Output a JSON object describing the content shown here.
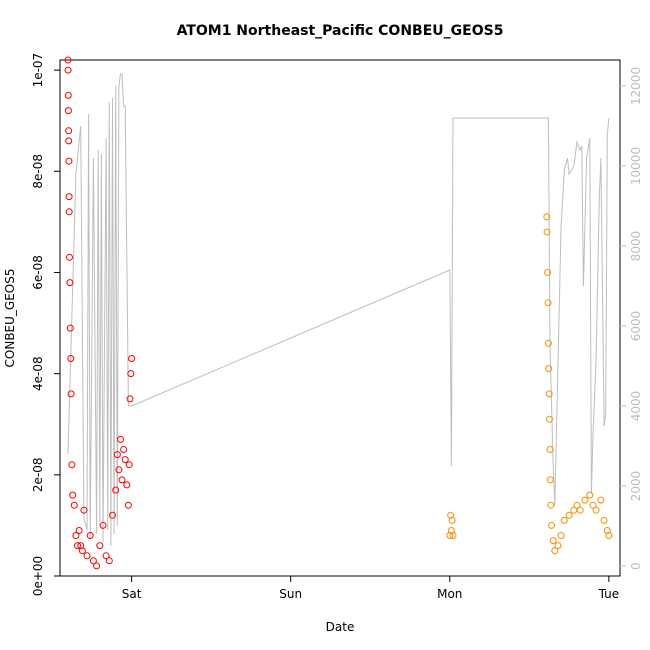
{
  "chart_data": {
    "type": "scatter",
    "title": "ATOM1 Northeast_Pacific CONBEU_GEOS5",
    "xlabel": "Date",
    "ylabel": "CONBEU_GEOS5",
    "x_unit": "days since Fri 00:00",
    "xlim": [
      0.55,
      4.07
    ],
    "x_ticks": [
      {
        "label": "Sat",
        "value": 1
      },
      {
        "label": "Sun",
        "value": 2
      },
      {
        "label": "Mon",
        "value": 3
      },
      {
        "label": "Tue",
        "value": 4
      }
    ],
    "ylim": [
      0,
      1.02e-07
    ],
    "y_ticks": [
      "0e+00",
      "2e-08",
      "4e-08",
      "6e-08",
      "8e-08",
      "1e-07"
    ],
    "y2lim": [
      0,
      12300
    ],
    "y2_ticks": [
      "0",
      "2000",
      "4000",
      "6000",
      "8000",
      "10000",
      "12000"
    ],
    "grid": false,
    "series": [
      {
        "name": "",
        "kind": "points",
        "color": "#ff0000",
        "x": [
          0.6,
          0.601,
          0.602,
          0.603,
          0.604,
          0.605,
          0.606,
          0.607,
          0.608,
          0.61,
          0.612,
          0.615,
          0.618,
          0.62,
          0.625,
          0.63,
          0.64,
          0.65,
          0.66,
          0.67,
          0.68,
          0.69,
          0.7,
          0.72,
          0.74,
          0.76,
          0.78,
          0.8,
          0.82,
          0.84,
          0.86,
          0.88,
          0.9,
          0.91,
          0.92,
          0.93,
          0.94,
          0.95,
          0.96,
          0.97,
          0.98,
          0.985,
          0.99,
          0.995,
          1.0
        ],
        "values": [
          1.02e-07,
          1e-07,
          9.5e-08,
          9.2e-08,
          8.8e-08,
          8.6e-08,
          8.2e-08,
          7.5e-08,
          7.2e-08,
          6.3e-08,
          5.8e-08,
          4.9e-08,
          4.3e-08,
          3.6e-08,
          2.2e-08,
          1.6e-08,
          1.4e-08,
          8e-09,
          6e-09,
          9e-09,
          6e-09,
          5e-09,
          1.3e-08,
          4e-09,
          8e-09,
          3e-09,
          2e-09,
          6e-09,
          1e-08,
          4e-09,
          3e-09,
          1.2e-08,
          1.7e-08,
          2.4e-08,
          2.1e-08,
          2.7e-08,
          1.9e-08,
          2.5e-08,
          2.3e-08,
          1.8e-08,
          1.4e-08,
          2.2e-08,
          3.5e-08,
          4e-08,
          4.3e-08
        ]
      },
      {
        "name": "",
        "kind": "points",
        "color": "#ff8c00",
        "x": [
          3.0,
          3.005,
          3.01,
          3.015,
          3.02,
          3.61,
          3.612,
          3.615,
          3.618,
          3.62,
          3.622,
          3.625,
          3.627,
          3.63,
          3.632,
          3.635,
          3.64,
          3.65,
          3.66,
          3.68,
          3.7,
          3.72,
          3.75,
          3.78,
          3.8,
          3.82,
          3.85,
          3.88,
          3.9,
          3.92,
          3.95,
          3.97,
          3.99,
          4.0
        ],
        "values": [
          8e-09,
          1.2e-08,
          9e-09,
          1.1e-08,
          8e-09,
          7.1e-08,
          6.8e-08,
          6e-08,
          5.4e-08,
          4.6e-08,
          4.1e-08,
          3.6e-08,
          3.1e-08,
          2.5e-08,
          1.9e-08,
          1.4e-08,
          1e-08,
          7e-09,
          5e-09,
          6e-09,
          8e-09,
          1.1e-08,
          1.2e-08,
          1.3e-08,
          1.4e-08,
          1.3e-08,
          1.5e-08,
          1.6e-08,
          1.4e-08,
          1.3e-08,
          1.5e-08,
          1.1e-08,
          9e-09,
          8e-09
        ]
      },
      {
        "name": "",
        "kind": "line",
        "axis": "right",
        "color": "#bebebe",
        "x": [
          0.6,
          0.65,
          0.68,
          0.7,
          0.72,
          0.73,
          0.74,
          0.76,
          0.78,
          0.79,
          0.8,
          0.81,
          0.82,
          0.84,
          0.85,
          0.86,
          0.87,
          0.88,
          0.89,
          0.9,
          0.91,
          0.92,
          0.93,
          0.94,
          0.95,
          0.96,
          0.98,
          1.0,
          3.0,
          3.01,
          3.02,
          3.03,
          3.62,
          3.63,
          3.65,
          3.66,
          3.7,
          3.72,
          3.74,
          3.75,
          3.78,
          3.8,
          3.82,
          3.83,
          3.84,
          3.86,
          3.88,
          3.89,
          3.9,
          3.92,
          3.94,
          3.95,
          3.97,
          3.98,
          3.99,
          4.0
        ],
        "values": [
          2800,
          9800,
          11000,
          1200,
          900,
          11300,
          700,
          10200,
          800,
          10400,
          1100,
          10300,
          600,
          10700,
          900,
          11600,
          500,
          11700,
          800,
          12000,
          1000,
          12000,
          12300,
          12300,
          11500,
          11500,
          4000,
          4000,
          7400,
          2500,
          11200,
          11200,
          11200,
          5500,
          2500,
          1500,
          8500,
          9900,
          10200,
          9800,
          10000,
          10600,
          10400,
          10500,
          7000,
          10200,
          10700,
          1800,
          3300,
          5200,
          9200,
          10200,
          3500,
          3800,
          10800,
          11200
        ]
      }
    ]
  }
}
